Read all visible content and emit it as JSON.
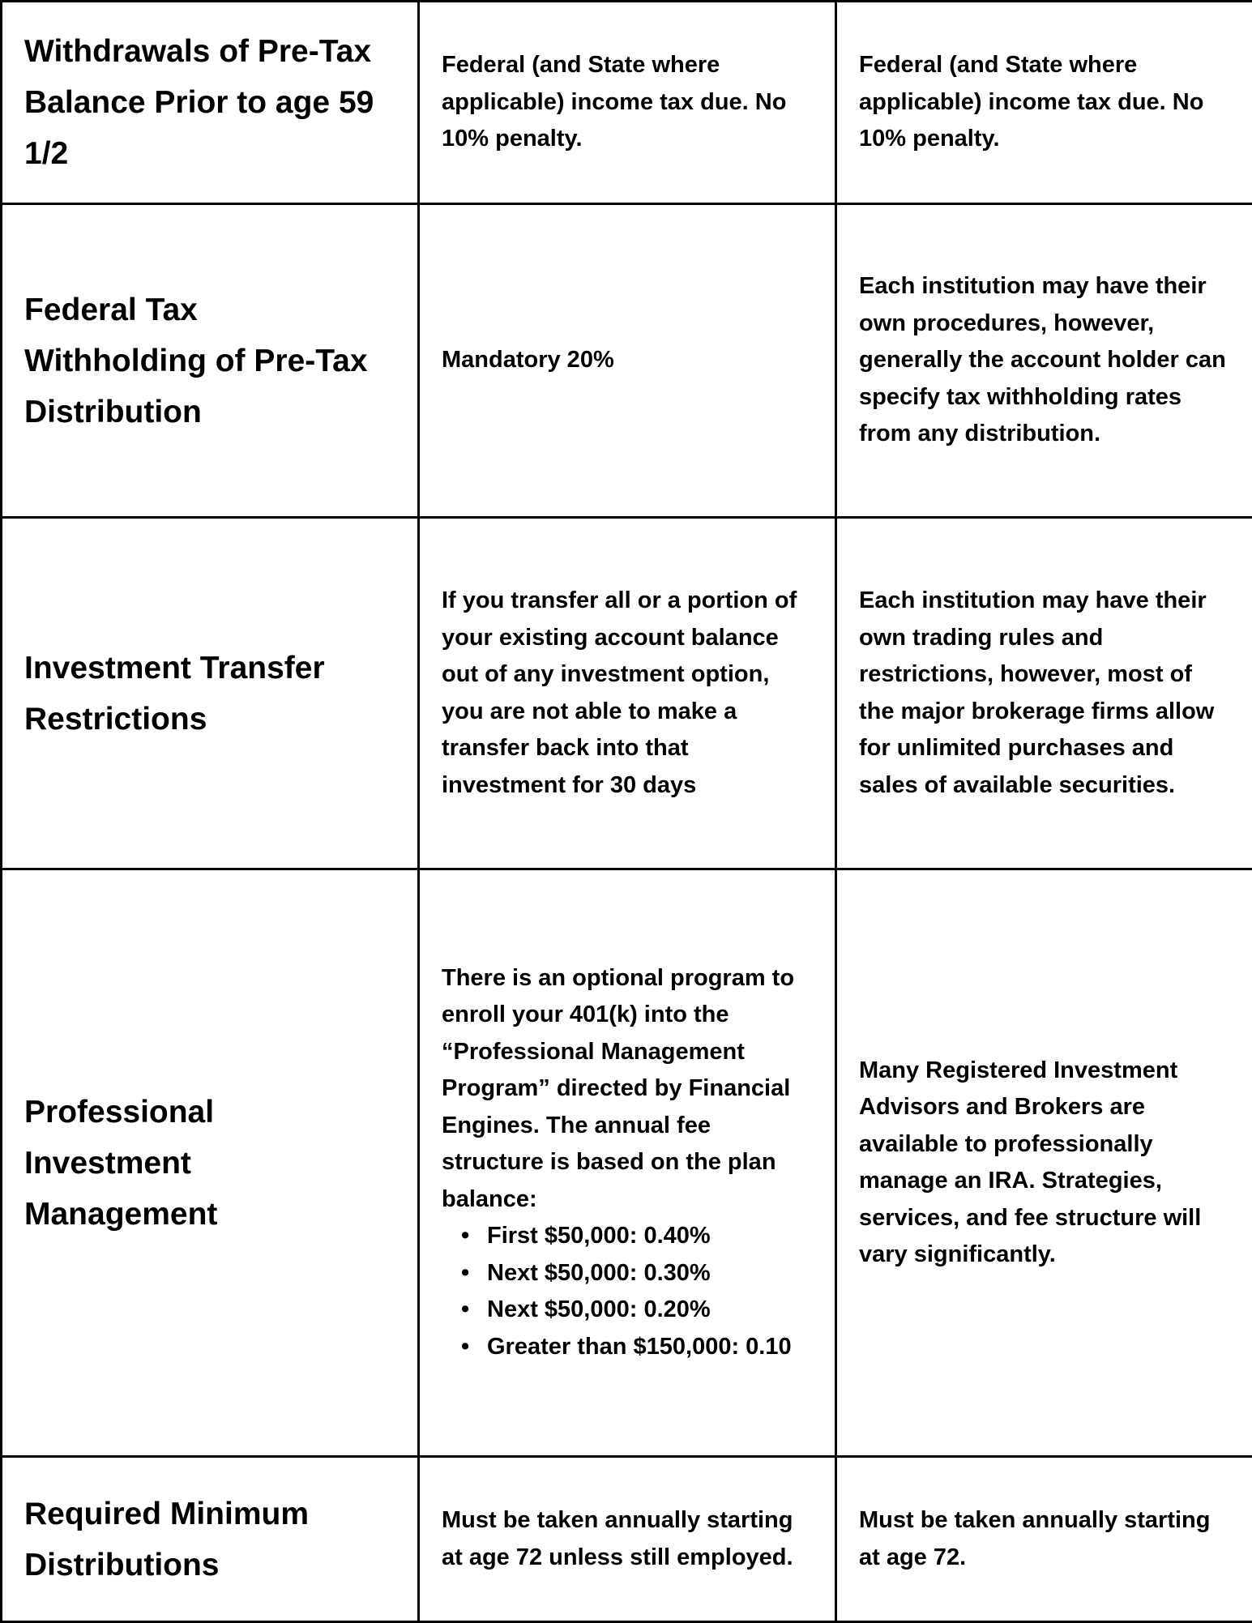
{
  "rows": [
    {
      "heading": "Withdrawals of Pre-Tax Balance Prior to age 59 1/2",
      "col2": "Federal (and State where applicable) income tax due. No 10% penalty.",
      "col3": "Federal (and State where applicable) income tax due. No 10% penalty."
    },
    {
      "heading": "Federal Tax Withholding of Pre-Tax Distribution",
      "col2": "Mandatory 20%",
      "col3": "Each institution may have their own procedures, however, generally the account holder can specify tax withholding rates from any distribution."
    },
    {
      "heading": "Investment Transfer Restrictions",
      "col2": "If you transfer all or a portion of your existing account balance out of any investment option, you are not able to make a transfer back into that investment for 30 days",
      "col3": "Each institution may have their own trading rules and restrictions, however, most of the major brokerage firms allow for unlimited purchases and sales of available securities."
    },
    {
      "heading": "Professional Investment Management",
      "col2": "There is an optional program to enroll your 401(k) into the “Professional Management Program” directed by Financial Engines. The annual fee structure is based on the plan balance:",
      "col2_bullets": [
        "First $50,000: 0.40%",
        "Next $50,000: 0.30%",
        "Next $50,000: 0.20%",
        "Greater than $150,000: 0.10"
      ],
      "col3": "Many Registered Investment Advisors and Brokers are available to professionally manage an IRA. Strategies, services, and fee structure will vary significantly."
    },
    {
      "heading": "Required Minimum Distributions",
      "col2": "Must be taken annually starting at age 72 unless still employed.",
      "col3": "Must be taken annually starting at age 72."
    }
  ]
}
